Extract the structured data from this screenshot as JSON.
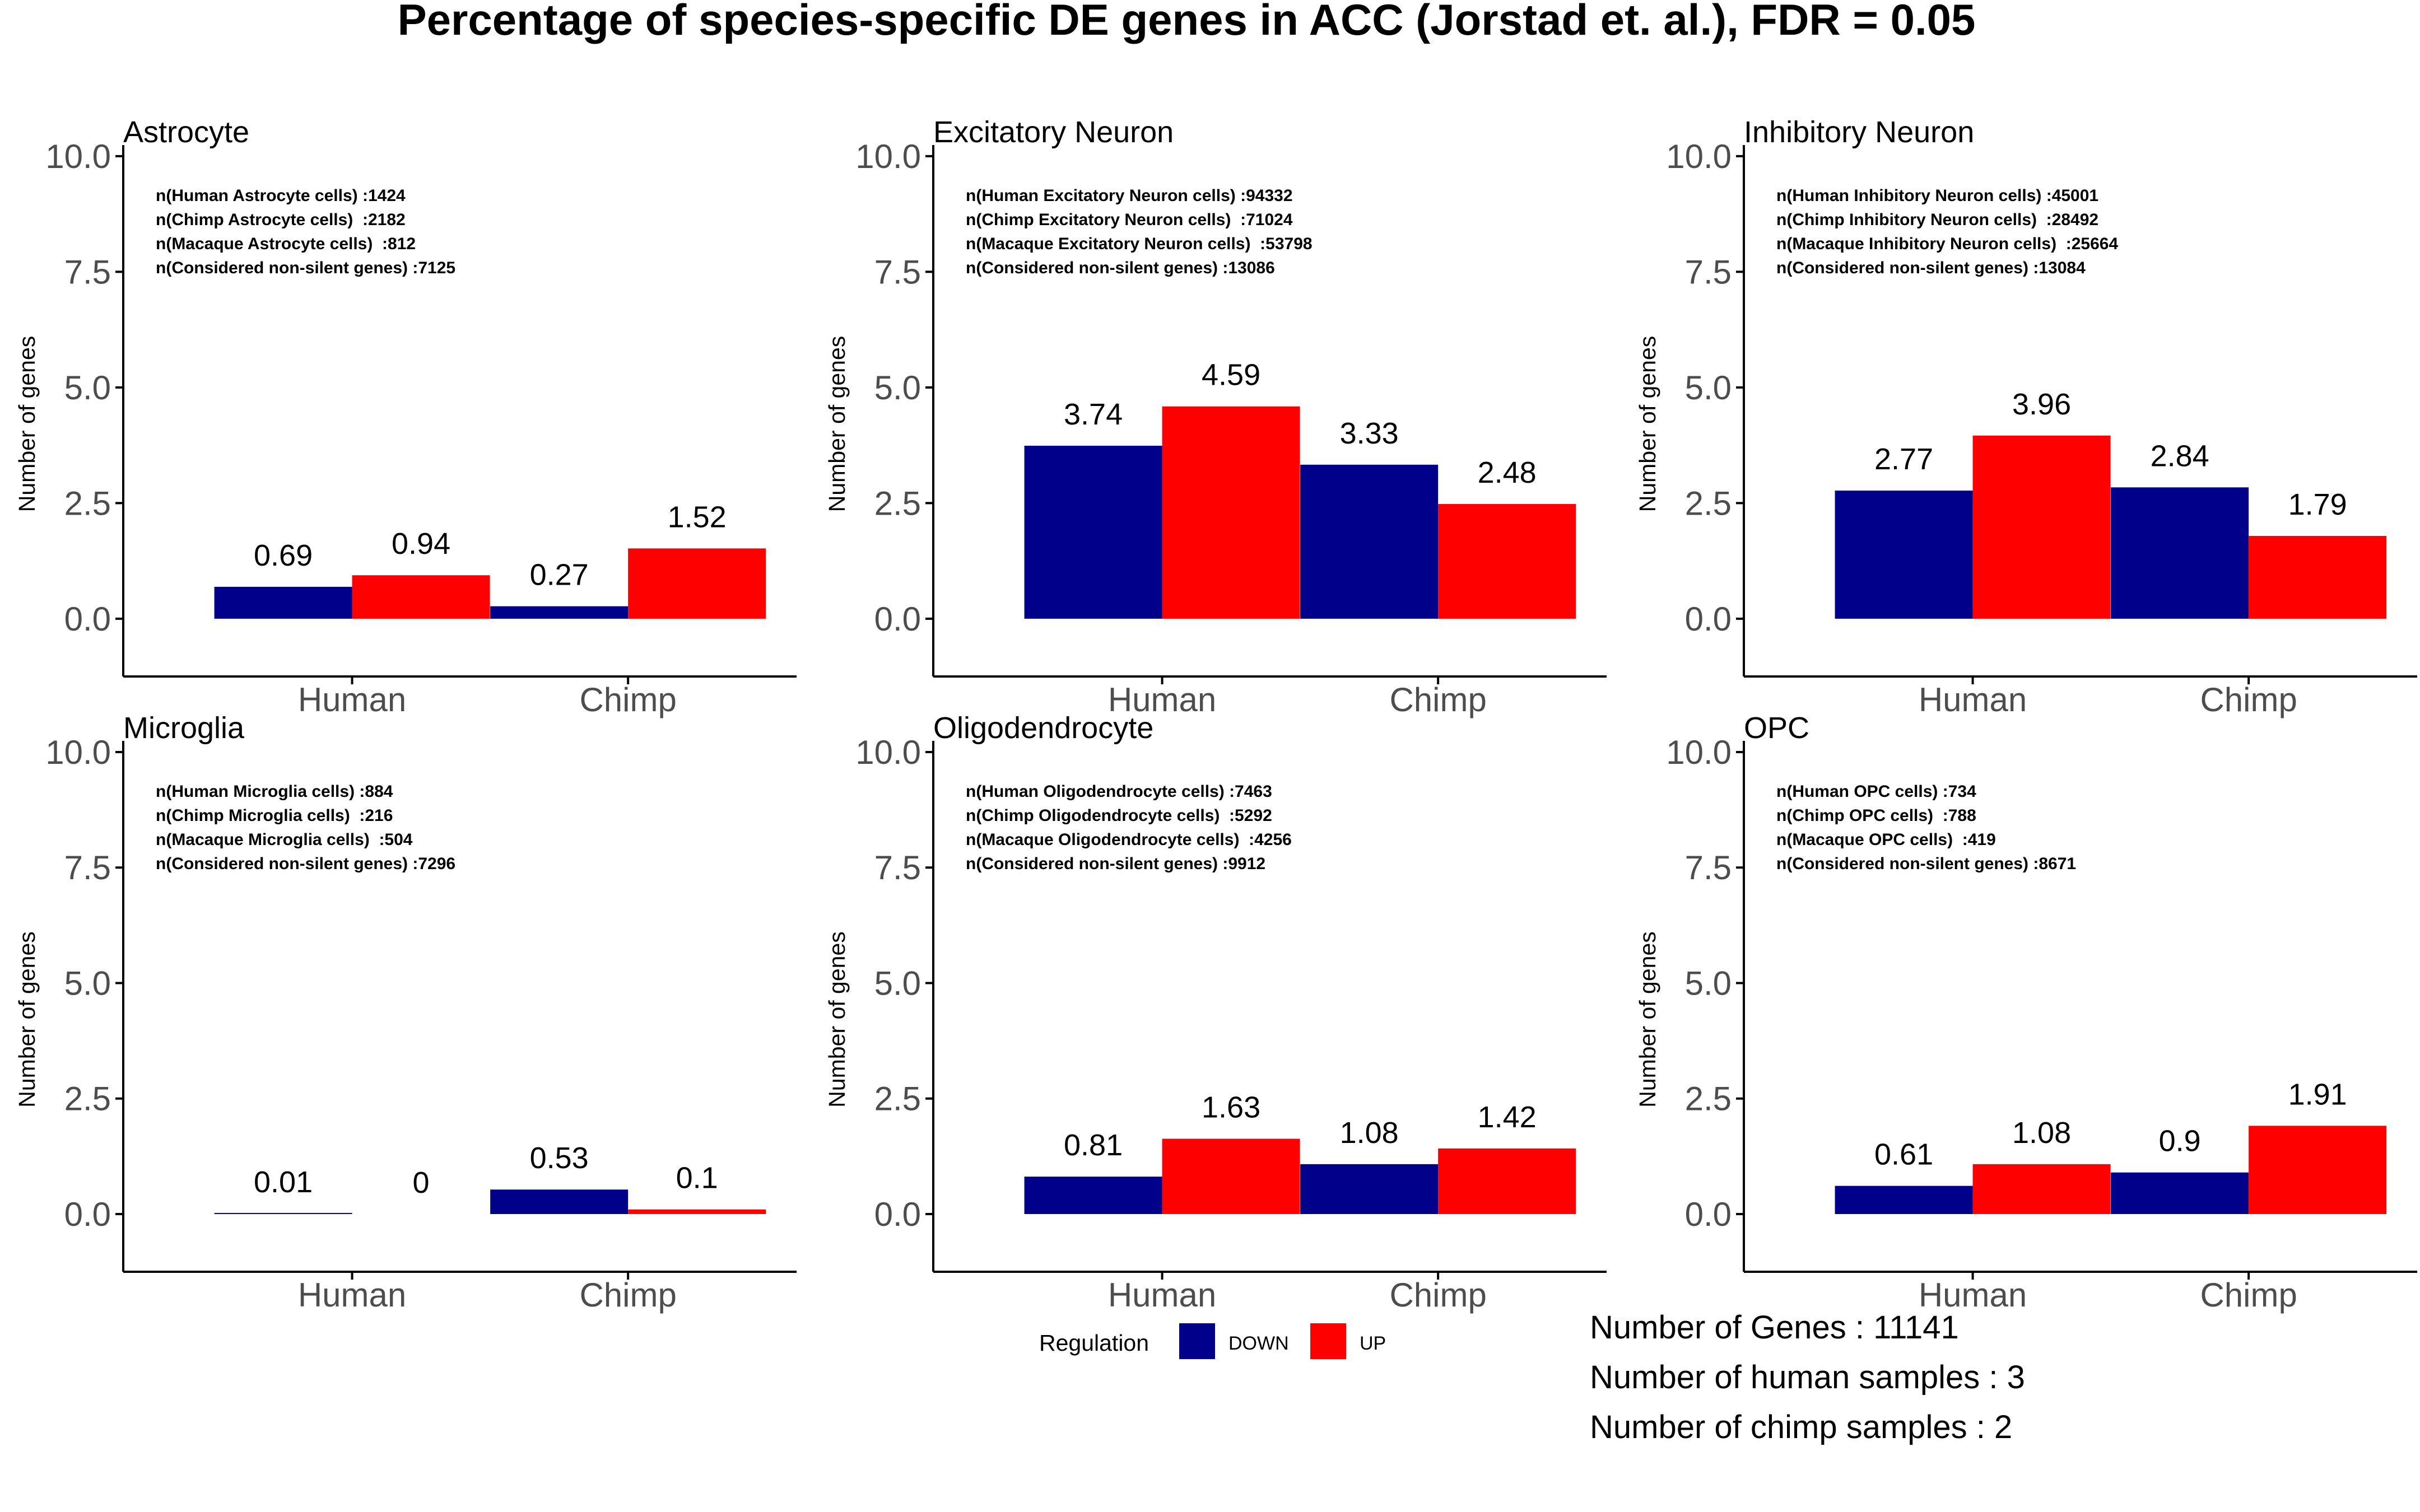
{
  "title": "Percentage of species-specific DE genes in ACC (Jorstad et. al.), FDR = 0.05",
  "colors": {
    "DOWN": "#00008B",
    "UP": "#FF0000",
    "axis": "#000000",
    "text": "#000000",
    "tick_text": "#4D4D4D"
  },
  "legend": {
    "title": "Regulation",
    "items": [
      {
        "label": "DOWN",
        "color": "#00008B"
      },
      {
        "label": "UP",
        "color": "#FF0000"
      }
    ],
    "position": "bottom-center"
  },
  "footer_lines": [
    "Number of Genes : 11141",
    "Number of human samples : 3",
    "Number of chimp samples : 2"
  ],
  "chart_data": [
    {
      "type": "bar",
      "title": "Astrocyte",
      "ylabel": "Number of genes",
      "xlabel": "",
      "ylim": [
        0,
        10
      ],
      "yticks": [
        "0.0",
        "2.5",
        "5.0",
        "7.5",
        "10.0"
      ],
      "categories": [
        "Human",
        "Chimp"
      ],
      "series": [
        {
          "name": "DOWN",
          "values": [
            0.69,
            0.27
          ]
        },
        {
          "name": "UP",
          "values": [
            0.94,
            1.52
          ]
        }
      ],
      "labels": [
        [
          "0.69",
          "0.27"
        ],
        [
          "0.94",
          "1.52"
        ]
      ],
      "annotations": [
        "n(Human Astrocyte cells) :1424",
        "n(Chimp Astrocyte cells)  :2182",
        "n(Macaque Astrocyte cells)  :812",
        "n(Considered non-silent genes) :7125"
      ]
    },
    {
      "type": "bar",
      "title": "Excitatory Neuron",
      "ylabel": "Number of genes",
      "xlabel": "",
      "ylim": [
        0,
        10
      ],
      "yticks": [
        "0.0",
        "2.5",
        "5.0",
        "7.5",
        "10.0"
      ],
      "categories": [
        "Human",
        "Chimp"
      ],
      "series": [
        {
          "name": "DOWN",
          "values": [
            3.74,
            3.33
          ]
        },
        {
          "name": "UP",
          "values": [
            4.59,
            2.48
          ]
        }
      ],
      "labels": [
        [
          "3.74",
          "3.33"
        ],
        [
          "4.59",
          "2.48"
        ]
      ],
      "annotations": [
        "n(Human Excitatory Neuron cells) :94332",
        "n(Chimp Excitatory Neuron cells)  :71024",
        "n(Macaque Excitatory Neuron cells)  :53798",
        "n(Considered non-silent genes) :13086"
      ]
    },
    {
      "type": "bar",
      "title": "Inhibitory Neuron",
      "ylabel": "Number of genes",
      "xlabel": "",
      "ylim": [
        0,
        10
      ],
      "yticks": [
        "0.0",
        "2.5",
        "5.0",
        "7.5",
        "10.0"
      ],
      "categories": [
        "Human",
        "Chimp"
      ],
      "series": [
        {
          "name": "DOWN",
          "values": [
            2.77,
            2.84
          ]
        },
        {
          "name": "UP",
          "values": [
            3.96,
            1.79
          ]
        }
      ],
      "labels": [
        [
          "2.77",
          "2.84"
        ],
        [
          "3.96",
          "1.79"
        ]
      ],
      "annotations": [
        "n(Human Inhibitory Neuron cells) :45001",
        "n(Chimp Inhibitory Neuron cells)  :28492",
        "n(Macaque Inhibitory Neuron cells)  :25664",
        "n(Considered non-silent genes) :13084"
      ]
    },
    {
      "type": "bar",
      "title": "Microglia",
      "ylabel": "Number of genes",
      "xlabel": "",
      "ylim": [
        0,
        10
      ],
      "yticks": [
        "0.0",
        "2.5",
        "5.0",
        "7.5",
        "10.0"
      ],
      "categories": [
        "Human",
        "Chimp"
      ],
      "series": [
        {
          "name": "DOWN",
          "values": [
            0.01,
            0.53
          ]
        },
        {
          "name": "UP",
          "values": [
            0,
            0.1
          ]
        }
      ],
      "labels": [
        [
          "0.01",
          "0.53"
        ],
        [
          "0",
          "0.1"
        ]
      ],
      "annotations": [
        "n(Human Microglia cells) :884",
        "n(Chimp Microglia cells)  :216",
        "n(Macaque Microglia cells)  :504",
        "n(Considered non-silent genes) :7296"
      ]
    },
    {
      "type": "bar",
      "title": "Oligodendrocyte",
      "ylabel": "Number of genes",
      "xlabel": "",
      "ylim": [
        0,
        10
      ],
      "yticks": [
        "0.0",
        "2.5",
        "5.0",
        "7.5",
        "10.0"
      ],
      "categories": [
        "Human",
        "Chimp"
      ],
      "series": [
        {
          "name": "DOWN",
          "values": [
            0.81,
            1.08
          ]
        },
        {
          "name": "UP",
          "values": [
            1.63,
            1.42
          ]
        }
      ],
      "labels": [
        [
          "0.81",
          "1.08"
        ],
        [
          "1.63",
          "1.42"
        ]
      ],
      "annotations": [
        "n(Human Oligodendrocyte cells) :7463",
        "n(Chimp Oligodendrocyte cells)  :5292",
        "n(Macaque Oligodendrocyte cells)  :4256",
        "n(Considered non-silent genes) :9912"
      ]
    },
    {
      "type": "bar",
      "title": "OPC",
      "ylabel": "Number of genes",
      "xlabel": "",
      "ylim": [
        0,
        10
      ],
      "yticks": [
        "0.0",
        "2.5",
        "5.0",
        "7.5",
        "10.0"
      ],
      "categories": [
        "Human",
        "Chimp"
      ],
      "series": [
        {
          "name": "DOWN",
          "values": [
            0.61,
            0.9
          ]
        },
        {
          "name": "UP",
          "values": [
            1.08,
            1.91
          ]
        }
      ],
      "labels": [
        [
          "0.61",
          "0.9"
        ],
        [
          "1.08",
          "1.91"
        ]
      ],
      "annotations": [
        "n(Human OPC cells) :734",
        "n(Chimp OPC cells)  :788",
        "n(Macaque OPC cells)  :419",
        "n(Considered non-silent genes) :8671"
      ]
    }
  ]
}
